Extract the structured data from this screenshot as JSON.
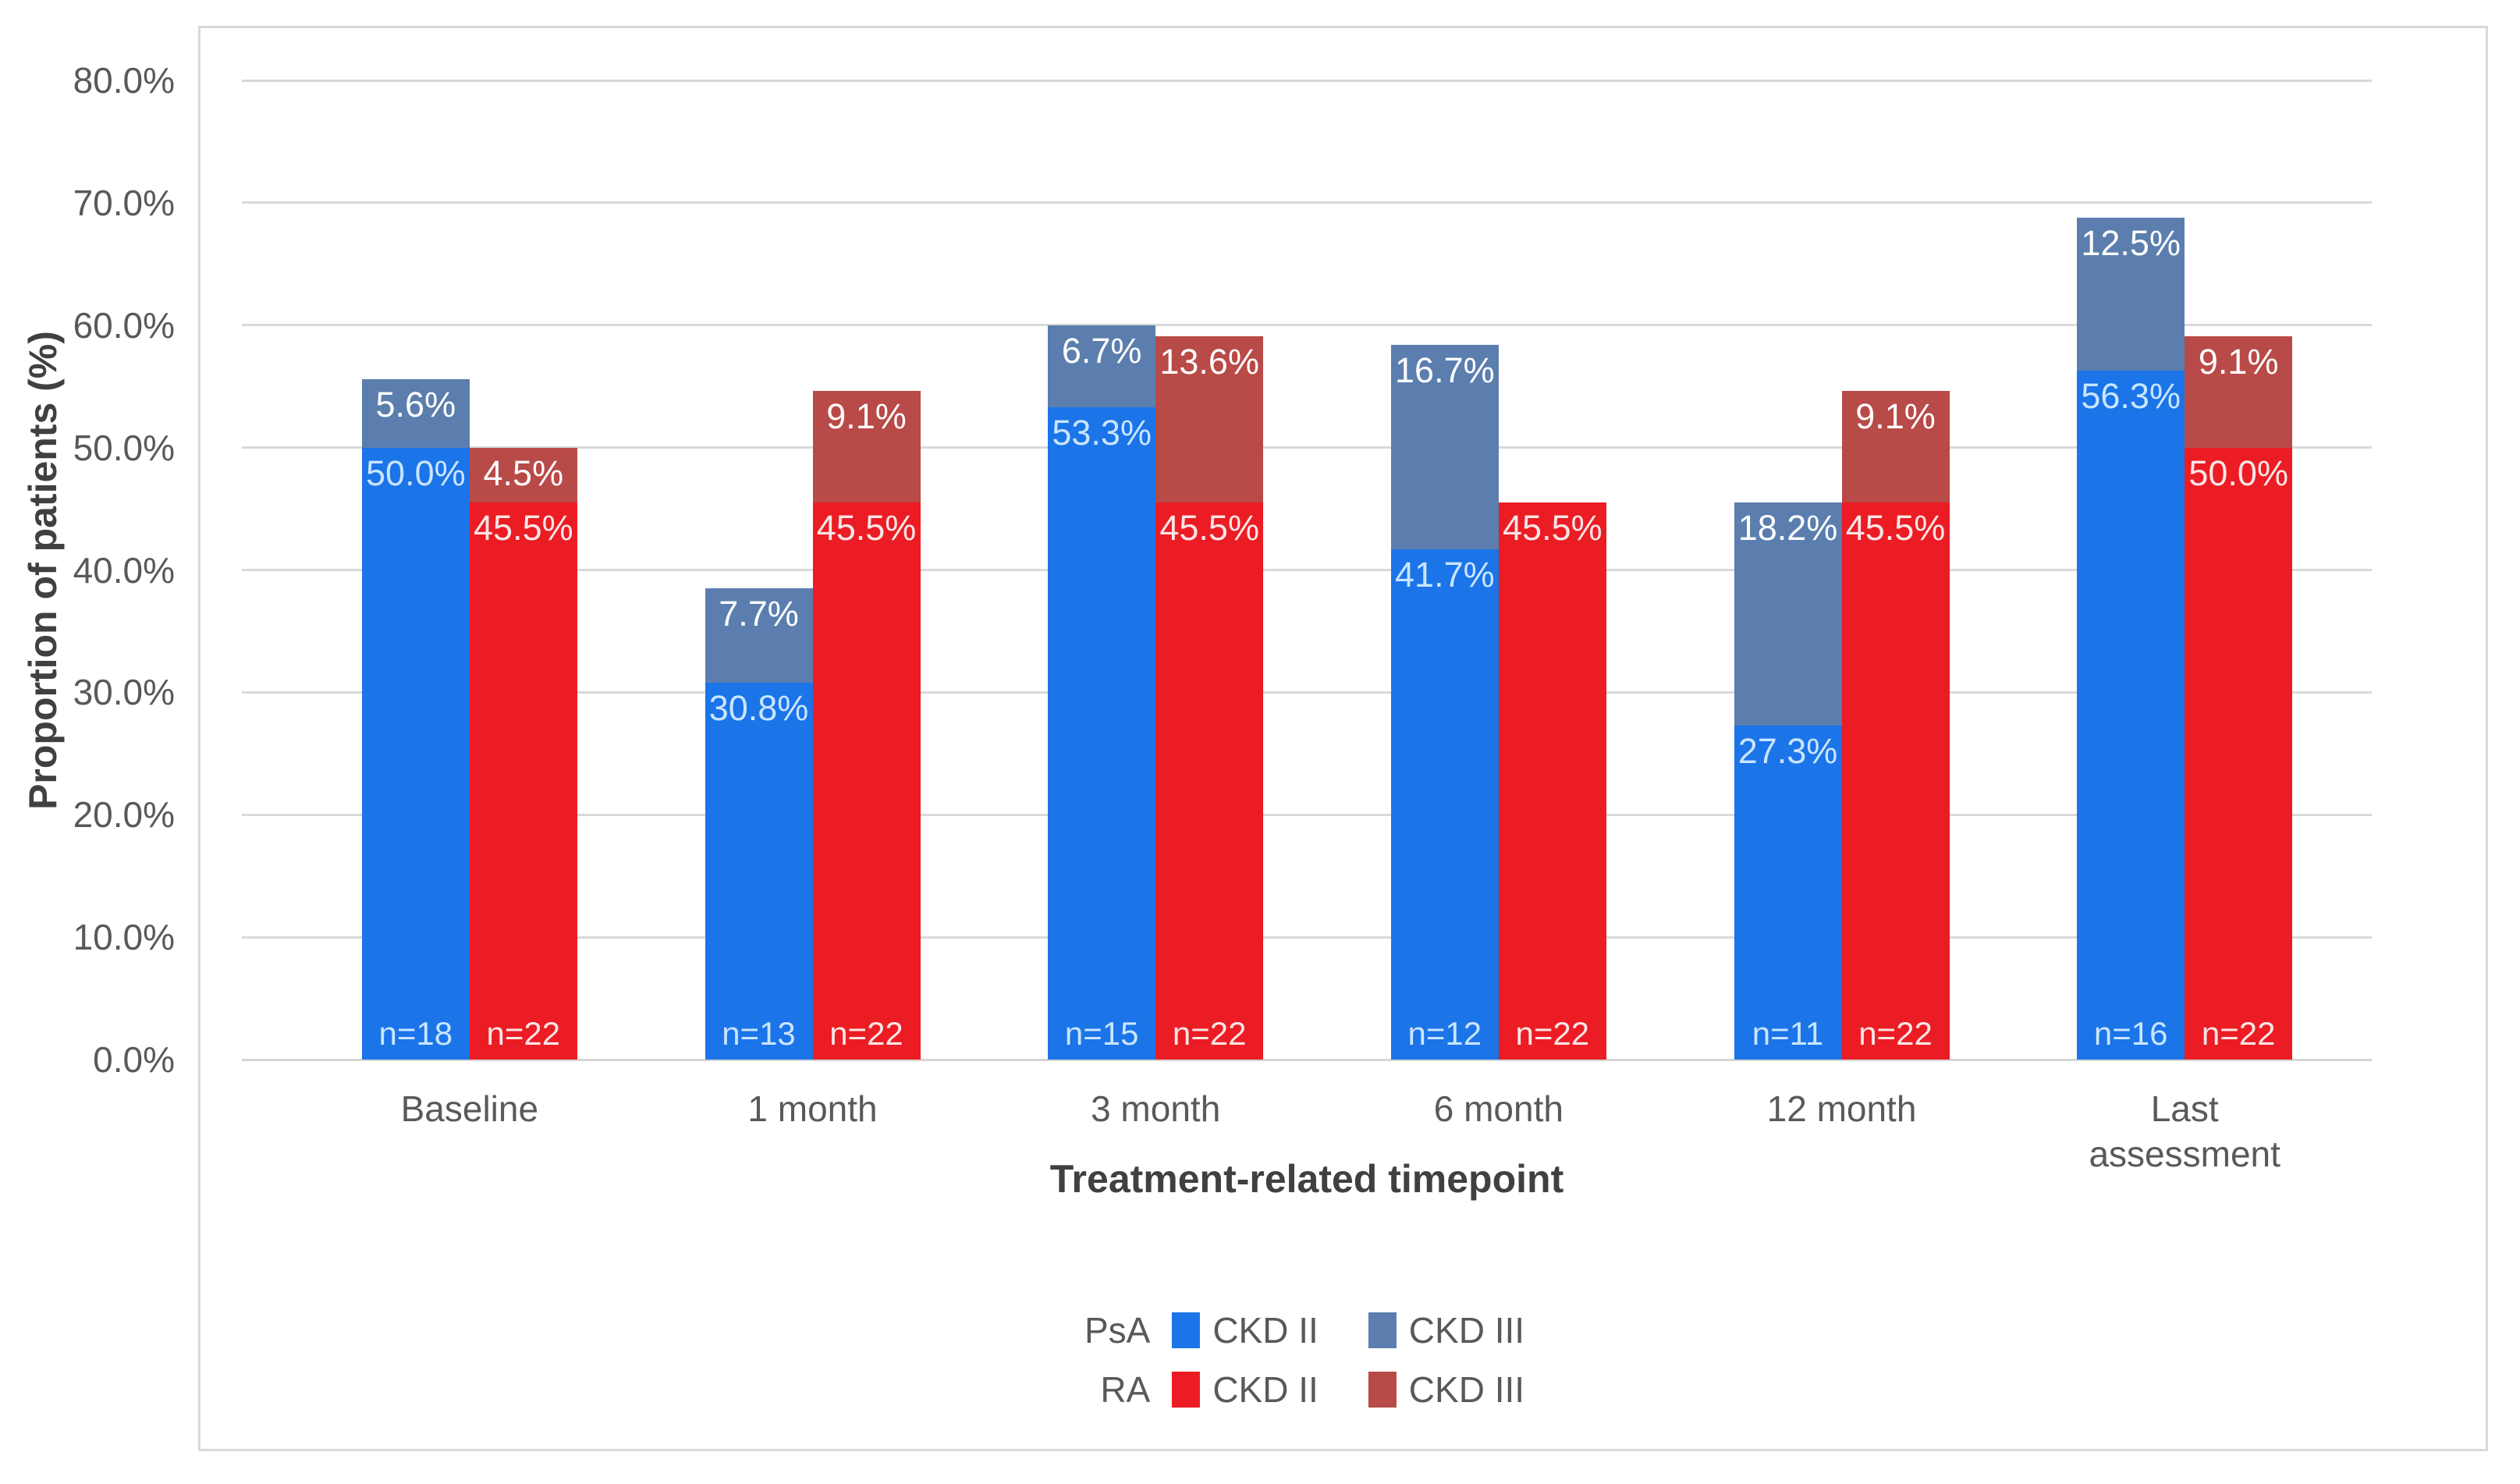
{
  "chart_data": {
    "type": "bar",
    "stacked": true,
    "grid": true,
    "legend_position": "bottom",
    "xlabel": "Treatment-related timepoint",
    "ylabel": "Proportion of patients (%)",
    "ylim": [
      0,
      80
    ],
    "ytick_labels": [
      "0.0%",
      "10.0%",
      "20.0%",
      "30.0%",
      "40.0%",
      "50.0%",
      "60.0%",
      "70.0%",
      "80.0%"
    ],
    "categories": [
      "Baseline",
      "1 month",
      "3 month",
      "6 month",
      "12 month",
      "Last\nassessment"
    ],
    "series": [
      {
        "name": "PsA CKD II",
        "stack": "PsA",
        "color": "#1B74E8",
        "label_color": "#C9E5FF",
        "values": [
          50.0,
          30.8,
          53.3,
          41.7,
          27.3,
          56.3
        ],
        "labels": [
          "50.0%",
          "30.8%",
          "53.3%",
          "41.7%",
          "27.3%",
          "56.3%"
        ]
      },
      {
        "name": "PsA CKD III",
        "stack": "PsA",
        "color": "#5B7EAE",
        "label_color": "#FFFFFF",
        "values": [
          5.6,
          7.7,
          6.7,
          16.7,
          18.2,
          12.5
        ],
        "labels": [
          "5.6%",
          "7.7%",
          "6.7%",
          "16.7%",
          "18.2%",
          "12.5%"
        ]
      },
      {
        "name": "RA CKD II",
        "stack": "RA",
        "color": "#EC1C24",
        "label_color": "#F8E6E6",
        "values": [
          45.5,
          45.5,
          45.5,
          45.5,
          45.5,
          50.0
        ],
        "labels": [
          "45.5%",
          "45.5%",
          "45.5%",
          "45.5%",
          "45.5%",
          "50.0%"
        ]
      },
      {
        "name": "RA CKD III",
        "stack": "RA",
        "color": "#B84A48",
        "label_color": "#FFFFFF",
        "values": [
          4.5,
          9.1,
          13.6,
          0,
          9.1,
          9.1
        ],
        "labels": [
          "4.5%",
          "9.1%",
          "13.6%",
          null,
          "9.1%",
          "9.1%"
        ]
      }
    ],
    "n_labels": [
      {
        "stack": "PsA",
        "values": [
          "n=18",
          "n=13",
          "n=15",
          "n=12",
          "n=11",
          "n=16"
        ]
      },
      {
        "stack": "RA",
        "values": [
          "n=22",
          "n=22",
          "n=22",
          "n=22",
          "n=22",
          "n=22"
        ]
      }
    ],
    "legend": {
      "rows": [
        {
          "group": "PsA",
          "items": [
            {
              "label": "CKD II",
              "color": "#1B74E8"
            },
            {
              "label": "CKD III",
              "color": "#5B7EAE"
            }
          ]
        },
        {
          "group": "RA",
          "items": [
            {
              "label": "CKD II",
              "color": "#EC1C24"
            },
            {
              "label": "CKD III",
              "color": "#B84A48"
            }
          ]
        }
      ]
    }
  },
  "colors": {
    "psa_ckd2": "#1B74E8",
    "psa_ckd3": "#5B7EAE",
    "ra_ckd2": "#EC1C24",
    "ra_ckd3": "#B84A48",
    "gridline": "#D9D9D9",
    "frame_border": "#D9D9D9",
    "axis_text": "#595959",
    "axis_title_text": "#404040"
  }
}
